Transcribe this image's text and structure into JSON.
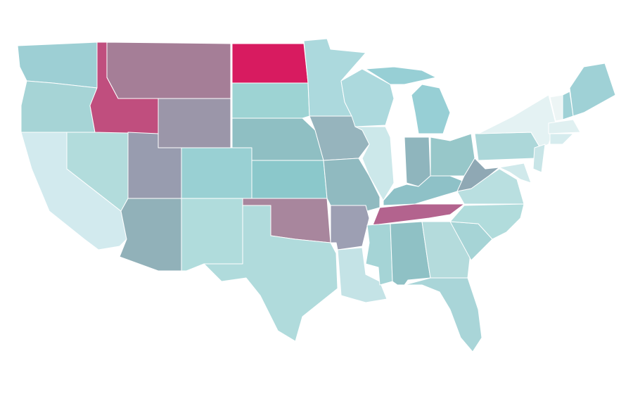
{
  "map": {
    "background": "#ffffff",
    "border_color": "#ffffff",
    "regions": [
      {
        "color": "#9dcfd4"
      },
      {
        "color": "#a6d4d6"
      },
      {
        "color": "#d2eaee"
      },
      {
        "color": "#b2dcdc"
      },
      {
        "color": "#c04e7e"
      },
      {
        "color": "#a57e97"
      },
      {
        "color": "#9b96a9"
      },
      {
        "color": "#989caf"
      },
      {
        "color": "#99d0d3"
      },
      {
        "color": "#91b1b9"
      },
      {
        "color": "#b0dcdc"
      },
      {
        "color": "#d81b60"
      },
      {
        "color": "#9dd3d3"
      },
      {
        "color": "#8fbfc3"
      },
      {
        "color": "#8bc8cb"
      },
      {
        "color": "#a8869d"
      },
      {
        "color": "#b0dbdc"
      },
      {
        "color": "#acd9dd"
      },
      {
        "color": "#96b4bd"
      },
      {
        "color": "#90bac0"
      },
      {
        "color": "#9d9fb3"
      },
      {
        "color": "#c4e3e6"
      },
      {
        "color": "#acd9dd"
      },
      {
        "color": "#cce8ea"
      },
      {
        "color": "#97cfd5"
      },
      {
        "color": "#8fb5bd"
      },
      {
        "color": "#97c7c9"
      },
      {
        "color": "#8ec1c7"
      },
      {
        "color": "#b3638e"
      },
      {
        "color": "#a5d4d6"
      },
      {
        "color": "#8fc1c5"
      },
      {
        "color": "#b4dbdc"
      },
      {
        "color": "#a9d5d8"
      },
      {
        "color": "#a6d4d6"
      },
      {
        "color": "#b1dcdc"
      },
      {
        "color": "#b9dfe0"
      },
      {
        "color": "#8fa8b4"
      },
      {
        "color": "#acd7d9"
      },
      {
        "color": "#e4f2f3"
      },
      {
        "color": "#d0e9eb"
      },
      {
        "color": "#c8e5e7"
      },
      {
        "color": "#edf5f5"
      },
      {
        "color": "#9fd1d6"
      },
      {
        "color": "#9fd1d6"
      },
      {
        "color": "#e0f0f1"
      },
      {
        "color": "#d6ecee"
      }
    ]
  }
}
